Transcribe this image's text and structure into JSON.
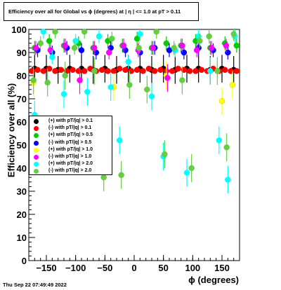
{
  "title": "Efficiency over all for Global vs ϕ (degrees) at |  η | <= 1.0 at pT > 0.11",
  "date": "Thu Sep 22 07:49:49 2022",
  "chart_data": {
    "type": "scatter",
    "title": "Efficiency over all for Global vs ϕ (degrees) at |  η | <= 1.0 at pT > 0.11",
    "xlabel": "ϕ (degrees)",
    "ylabel": "Efficiency over all (%)",
    "xlim": [
      -180,
      180
    ],
    "ylim": [
      0,
      100
    ],
    "x_ticks": [
      -150,
      -100,
      -50,
      0,
      50,
      100,
      150
    ],
    "x_tick_labels": [
      "−150",
      "−100",
      "−50",
      "0",
      "50",
      "100",
      "150"
    ],
    "y_ticks": [
      0,
      10,
      20,
      30,
      40,
      50,
      60,
      70,
      80,
      90,
      100
    ],
    "grid": true,
    "legend_position": "left-middle",
    "series": [
      {
        "name": "(+) with pT/|q| > 0.1",
        "color": "#000000",
        "x": [
          -170,
          -150,
          -130,
          -110,
          -90,
          -70,
          -50,
          -30,
          -10,
          10,
          30,
          50,
          70,
          90,
          110,
          130,
          150,
          170
        ],
        "values": [
          83,
          83,
          82.5,
          83,
          83,
          82.5,
          83,
          82.5,
          83,
          83,
          82.5,
          83,
          82.5,
          83,
          83,
          82.5,
          83,
          82.5
        ]
      },
      {
        "name": "(-) with pT/|q| > 0.1",
        "color": "#ff0000",
        "x": [
          -175,
          -165,
          -155,
          -145,
          -135,
          -125,
          -115,
          -105,
          -95,
          -85,
          -75,
          -65,
          -55,
          -45,
          -35,
          -25,
          -15,
          -5,
          5,
          15,
          25,
          35,
          45,
          55,
          65,
          75,
          85,
          95,
          105,
          115,
          125,
          135,
          145,
          155,
          165,
          175
        ],
        "values": [
          82,
          82.5,
          82,
          83,
          82,
          82.5,
          82,
          82.5,
          82,
          82,
          83,
          82,
          82.5,
          82,
          82,
          83,
          82.5,
          82,
          82.5,
          82,
          83,
          82,
          82.5,
          82,
          82,
          83,
          82.5,
          82,
          82,
          82.5,
          82,
          83,
          82,
          82.5,
          82,
          82
        ]
      },
      {
        "name": "(+) with pT/|q| > 0.5",
        "color": "#00cc00",
        "x": [
          -170,
          -145,
          -120,
          -95,
          -70,
          -45,
          -20,
          5,
          30,
          55,
          80,
          105,
          130,
          155,
          175
        ],
        "values": [
          92,
          95,
          93,
          94,
          92,
          95,
          93,
          96,
          92,
          94,
          93,
          95,
          92,
          94,
          93
        ]
      },
      {
        "name": "(-) with pT/|q| > 0.5",
        "color": "#0000ff",
        "x": [
          -165,
          -140,
          -115,
          -90,
          -65,
          -40,
          -15,
          10,
          35,
          60,
          85,
          110,
          135,
          160
        ],
        "values": [
          91,
          90,
          92,
          91,
          90,
          92,
          91,
          90,
          92,
          91,
          90,
          92,
          91,
          90
        ]
      },
      {
        "name": "(+) with pT/|q| > 1.0",
        "color": "#ffff00",
        "x": [
          -172,
          -35,
          55,
          150,
          168
        ],
        "values": [
          77,
          75,
          80,
          69,
          76
        ]
      },
      {
        "name": "(-) with pT/|q| > 1.0",
        "color": "#ff00ff",
        "x": [
          -168,
          -143,
          -118,
          -93,
          -68,
          -43,
          -18,
          7,
          32,
          57,
          82,
          107,
          132,
          157
        ],
        "values": [
          92,
          91,
          93,
          78,
          92,
          90,
          93,
          91,
          92,
          79,
          93,
          91,
          92,
          93
        ]
      },
      {
        "name": "(+) with pT/|q| > 2.0",
        "color": "#00ffff",
        "x": [
          -170,
          -155,
          -140,
          -120,
          -100,
          -80,
          -60,
          -40,
          -25,
          -10,
          10,
          30,
          50,
          70,
          90,
          110,
          130,
          145,
          160,
          172
        ],
        "values": [
          63,
          99,
          88,
          72,
          95,
          73,
          97,
          75,
          52,
          86,
          98,
          71,
          45,
          91,
          38,
          97,
          82,
          52,
          35,
          97
        ]
      },
      {
        "name": "(-) with pT/|q| > 2.0",
        "color": "#66cc44",
        "x": [
          -172,
          -160,
          -148,
          -135,
          -118,
          -102,
          -85,
          -68,
          -52,
          -38,
          -22,
          -8,
          8,
          22,
          38,
          52,
          68,
          82,
          98,
          112,
          128,
          142,
          158,
          170
        ],
        "values": [
          78,
          94,
          77,
          99,
          80,
          92,
          99,
          82,
          36,
          96,
          37,
          76,
          92,
          74,
          99,
          46,
          92,
          78,
          40,
          95,
          97,
          82,
          49,
          98
        ]
      }
    ]
  }
}
